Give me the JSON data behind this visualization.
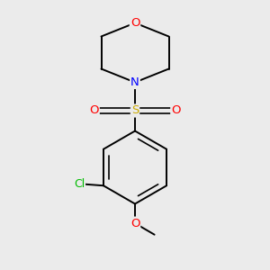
{
  "background_color": "#ebebeb",
  "bond_color": "#000000",
  "atom_colors": {
    "O": "#ff0000",
    "N": "#0000ff",
    "S": "#ccaa00",
    "Cl": "#00bb00",
    "C": "#000000"
  },
  "figure_size": [
    3.0,
    3.0
  ],
  "dpi": 100,
  "bond_lw": 1.4,
  "inner_lw": 1.2,
  "font_size": 9.5
}
